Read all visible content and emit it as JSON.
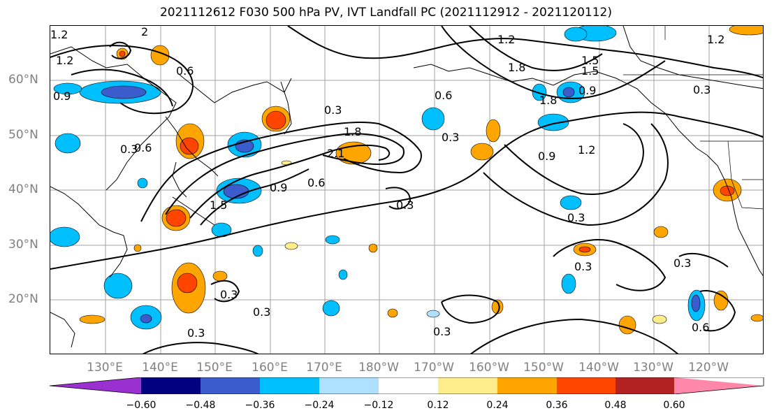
{
  "title": "2021112612 F030 500 hPa PV, IVT Landfall PC (2021112912 - 2021120112)",
  "lat_labels": [
    "60°N",
    "50°N",
    "40°N",
    "30°N",
    "20°N"
  ],
  "lon_labels": [
    "130°E",
    "140°E",
    "150°E",
    "160°E",
    "170°E",
    "180°W",
    "170°W",
    "160°W",
    "150°W",
    "140°W",
    "130°W",
    "120°W"
  ],
  "contour_labels": [
    "1.2",
    "2",
    "0.6",
    "0.9",
    "1.5",
    "0.3",
    "1.8",
    "2.1",
    "0.6",
    "0.9",
    "0.6",
    "1.5",
    "0.3",
    "0.3",
    "0.3",
    "0.3",
    "0.3",
    "0.3",
    "0.6",
    "0.3",
    "1.2",
    "1.8",
    "1.5",
    "1.2",
    "0.9",
    "1.8",
    "0.6",
    "1.2",
    "0.9",
    "1.2",
    "0.3",
    "0.3",
    "0.3",
    "0.3"
  ],
  "colorbar": {
    "ticks": [
      "−0.60",
      "−0.48",
      "−0.36",
      "−0.24",
      "−0.12",
      "0.12",
      "0.24",
      "0.36",
      "0.48",
      "0.60"
    ],
    "colors": [
      "#9b30d0",
      "#000080",
      "#3a5ccc",
      "#00bfff",
      "#b0e0ff",
      "#ffffff",
      "#ffec8b",
      "#ffa500",
      "#ff4500",
      "#b22222",
      "#ff88aa"
    ]
  },
  "colors": {
    "positive_strong": "#ff4500",
    "positive_mid": "#ffa500",
    "positive_weak": "#ffec8b",
    "negative_weak": "#b0e0ff",
    "negative_mid": "#00bfff",
    "negative_strong": "#3a5ccc"
  }
}
